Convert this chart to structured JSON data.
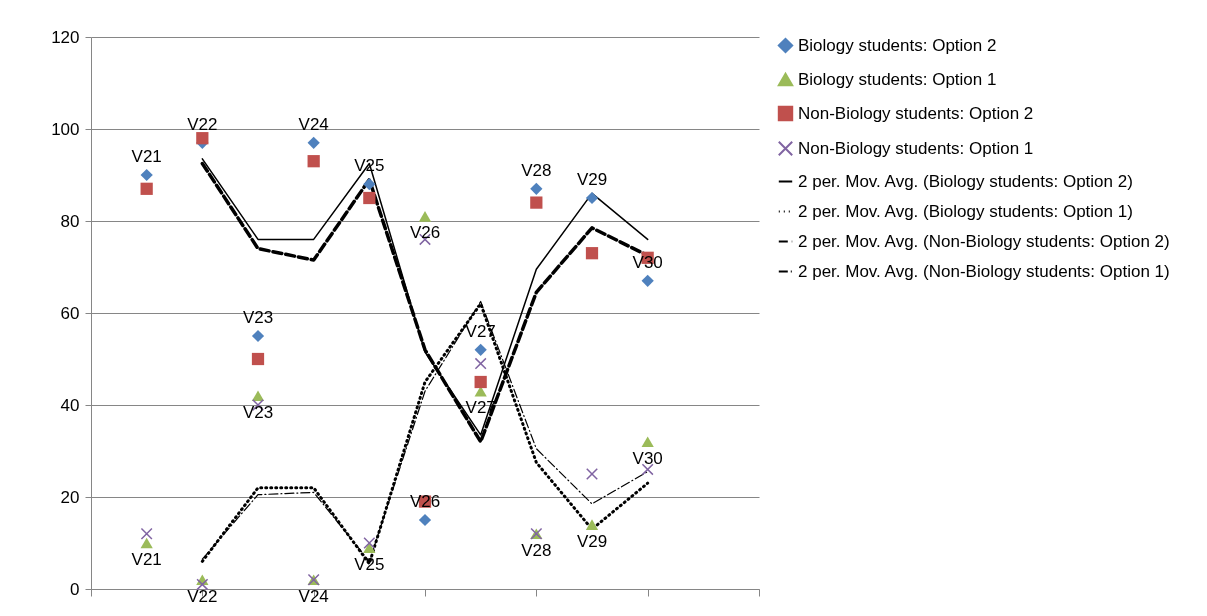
{
  "chart_data": {
    "type": "scatter",
    "categories": [
      null,
      null,
      null,
      null,
      null,
      null,
      null,
      null,
      null,
      null
    ],
    "ylim": [
      0,
      120
    ],
    "yticks": [
      0,
      20,
      40,
      60,
      80,
      100,
      120
    ],
    "tick_labels": "y",
    "grid": "y",
    "legend": "right",
    "series": [
      {
        "name": "Biology students: Option 2",
        "marker": "diamond",
        "color": "#4f81bd",
        "values": [
          90,
          97,
          55,
          97,
          88,
          15,
          52,
          87,
          85,
          67
        ],
        "value_labels": [
          "V21",
          "V22",
          "V23",
          "V24",
          "V25",
          "V26",
          "V27",
          "V28",
          "V29",
          "V30"
        ]
      },
      {
        "name": "Biology students: Option 1",
        "marker": "triangle",
        "color": "#9bbb59",
        "values": [
          10,
          2,
          42,
          2,
          9,
          81,
          43,
          12,
          14,
          32
        ],
        "value_labels": [
          "V21",
          "V22",
          "V23",
          "V24",
          "V25",
          "V26",
          "V27",
          "V28",
          "V29",
          "V30"
        ]
      },
      {
        "name": "Non-Biology students: Option 2",
        "marker": "square",
        "color": "#c0504d",
        "values": [
          87,
          98,
          50,
          93,
          85,
          19,
          45,
          84,
          73,
          72
        ]
      },
      {
        "name": "Non-Biology students: Option 1",
        "marker": "cross",
        "color": "#8064a2",
        "values": [
          12,
          1,
          40,
          2,
          10,
          76,
          49,
          12,
          25,
          26
        ]
      },
      {
        "name": "2 per. Mov. Avg. (Biology students: Option 2)",
        "type": "line",
        "line_style": "solid",
        "color": "#000000",
        "values": [
          null,
          93.5,
          76,
          76,
          92.5,
          51.5,
          33.5,
          69.5,
          86,
          76
        ]
      },
      {
        "name": "2 per. Mov. Avg. (Biology students: Option 1)",
        "type": "line",
        "line_style": "dotted",
        "color": "#000000",
        "values": [
          null,
          6,
          22,
          22,
          5.5,
          45,
          62,
          27.5,
          13,
          23
        ]
      },
      {
        "name": "2 per. Mov. Avg. (Non-Biology students: Option 2)",
        "type": "line",
        "line_style": "dashed",
        "color": "#000000",
        "values": [
          null,
          92.5,
          74,
          71.5,
          89,
          52,
          32,
          64.5,
          78.5,
          72.5
        ]
      },
      {
        "name": "2 per. Mov. Avg. (Non-Biology students: Option 1)",
        "type": "line",
        "line_style": "dashdot",
        "color": "#000000",
        "values": [
          null,
          6.5,
          20.5,
          21,
          6,
          43,
          62.5,
          30.5,
          18.5,
          25.5
        ]
      }
    ]
  }
}
